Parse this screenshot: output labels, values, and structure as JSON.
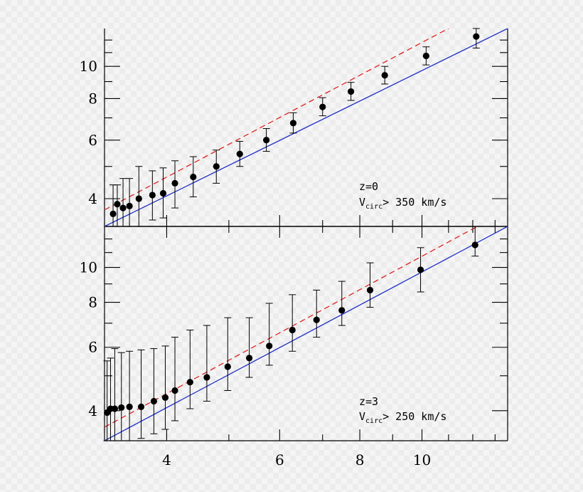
{
  "chart_data": [
    {
      "panel": "top",
      "type": "scatter",
      "log_x": true,
      "log_y": true,
      "xlim": [
        3.2,
        13.6
      ],
      "ylim": [
        3.3,
        13.0
      ],
      "x_ticks_major": [
        4,
        6,
        8,
        10
      ],
      "y_ticks_major": [
        4,
        6,
        8,
        10
      ],
      "y_tick_labels": [
        "4",
        "6",
        "8",
        "10"
      ],
      "annotation_line1": "z=0",
      "annotation_vmain": "V",
      "annotation_vsub": "circ",
      "annotation_rest": ">  350 km/s",
      "series": [
        {
          "kind": "points",
          "color": "#000000",
          "points": [
            {
              "x": 3.3,
              "y": 3.6,
              "lo": 3.3,
              "hi": 4.4
            },
            {
              "x": 3.35,
              "y": 3.85,
              "lo": 3.3,
              "hi": 4.4
            },
            {
              "x": 3.42,
              "y": 3.75,
              "lo": 3.3,
              "hi": 4.6
            },
            {
              "x": 3.5,
              "y": 3.8,
              "lo": 3.3,
              "hi": 4.6
            },
            {
              "x": 3.62,
              "y": 4.0,
              "lo": 3.3,
              "hi": 5.0
            },
            {
              "x": 3.8,
              "y": 4.1,
              "lo": 3.45,
              "hi": 4.85
            },
            {
              "x": 3.95,
              "y": 4.15,
              "lo": 3.5,
              "hi": 4.95
            },
            {
              "x": 4.12,
              "y": 4.45,
              "lo": 3.75,
              "hi": 5.2
            },
            {
              "x": 4.4,
              "y": 4.65,
              "lo": 4.05,
              "hi": 5.35
            },
            {
              "x": 4.78,
              "y": 5.0,
              "lo": 4.45,
              "hi": 5.6
            },
            {
              "x": 5.2,
              "y": 5.45,
              "lo": 5.0,
              "hi": 5.95
            },
            {
              "x": 5.72,
              "y": 6.0,
              "lo": 5.55,
              "hi": 6.5
            },
            {
              "x": 6.3,
              "y": 6.75,
              "lo": 6.3,
              "hi": 7.25
            },
            {
              "x": 7.0,
              "y": 7.55,
              "lo": 7.1,
              "hi": 8.05
            },
            {
              "x": 7.75,
              "y": 8.4,
              "lo": 7.9,
              "hi": 8.95
            },
            {
              "x": 8.75,
              "y": 9.4,
              "lo": 8.85,
              "hi": 10.0
            },
            {
              "x": 10.15,
              "y": 10.75,
              "lo": 10.1,
              "hi": 11.45
            },
            {
              "x": 12.15,
              "y": 12.3,
              "lo": 11.35,
              "hi": 13.0
            }
          ]
        },
        {
          "kind": "line",
          "style": "solid",
          "color": "#1f2fc4",
          "x": [
            3.2,
            13.6
          ],
          "y": [
            3.3,
            13.0
          ]
        },
        {
          "kind": "line",
          "style": "dashed",
          "color": "#dd2222",
          "x": [
            3.2,
            11.0
          ],
          "y": [
            3.7,
            13.0
          ]
        }
      ]
    },
    {
      "panel": "bottom",
      "type": "scatter",
      "log_x": true,
      "log_y": true,
      "xlim": [
        3.2,
        13.6
      ],
      "ylim": [
        3.3,
        13.0
      ],
      "x_ticks_major": [
        4,
        6,
        8,
        10
      ],
      "x_tick_labels": [
        "4",
        "6",
        "8",
        "10"
      ],
      "y_ticks_major": [
        4,
        6,
        8,
        10
      ],
      "y_tick_labels": [
        "4",
        "6",
        "8",
        "10"
      ],
      "annotation_line1": "z=3",
      "annotation_vmain": "V",
      "annotation_vsub": "circ",
      "annotation_rest": ">  250 km/s",
      "series": [
        {
          "kind": "points",
          "color": "#000000",
          "points": [
            {
              "x": 3.23,
              "y": 3.95,
              "lo": 3.3,
              "hi": 5.5
            },
            {
              "x": 3.27,
              "y": 4.05,
              "lo": 3.3,
              "hi": 5.6
            },
            {
              "x": 3.32,
              "y": 4.05,
              "lo": 3.3,
              "hi": 5.95
            },
            {
              "x": 3.4,
              "y": 4.08,
              "lo": 3.3,
              "hi": 5.8
            },
            {
              "x": 3.5,
              "y": 4.1,
              "lo": 3.3,
              "hi": 5.85
            },
            {
              "x": 3.65,
              "y": 4.1,
              "lo": 3.35,
              "hi": 5.9
            },
            {
              "x": 3.82,
              "y": 4.25,
              "lo": 3.45,
              "hi": 5.95
            },
            {
              "x": 3.98,
              "y": 4.35,
              "lo": 3.55,
              "hi": 6.05
            },
            {
              "x": 4.12,
              "y": 4.55,
              "lo": 3.75,
              "hi": 6.4
            },
            {
              "x": 4.35,
              "y": 4.8,
              "lo": 4.05,
              "hi": 6.7
            },
            {
              "x": 4.62,
              "y": 4.95,
              "lo": 4.25,
              "hi": 6.9
            },
            {
              "x": 4.98,
              "y": 5.3,
              "lo": 4.55,
              "hi": 7.25
            },
            {
              "x": 5.38,
              "y": 5.6,
              "lo": 4.95,
              "hi": 7.25
            },
            {
              "x": 5.78,
              "y": 6.05,
              "lo": 5.35,
              "hi": 7.95
            },
            {
              "x": 6.28,
              "y": 6.7,
              "lo": 5.85,
              "hi": 8.4
            },
            {
              "x": 6.85,
              "y": 7.15,
              "lo": 6.4,
              "hi": 8.65
            },
            {
              "x": 7.5,
              "y": 7.6,
              "lo": 6.9,
              "hi": 9.15
            },
            {
              "x": 8.3,
              "y": 8.65,
              "lo": 7.75,
              "hi": 10.3
            },
            {
              "x": 9.95,
              "y": 9.85,
              "lo": 8.55,
              "hi": 11.35
            },
            {
              "x": 12.1,
              "y": 11.55,
              "lo": 10.75,
              "hi": 13.0
            }
          ]
        },
        {
          "kind": "line",
          "style": "solid",
          "color": "#1f2fc4",
          "x": [
            3.2,
            13.6
          ],
          "y": [
            3.3,
            13.0
          ]
        },
        {
          "kind": "line",
          "style": "dashed",
          "color": "#dd2222",
          "x": [
            3.2,
            12.2
          ],
          "y": [
            3.6,
            13.0
          ]
        }
      ]
    }
  ]
}
